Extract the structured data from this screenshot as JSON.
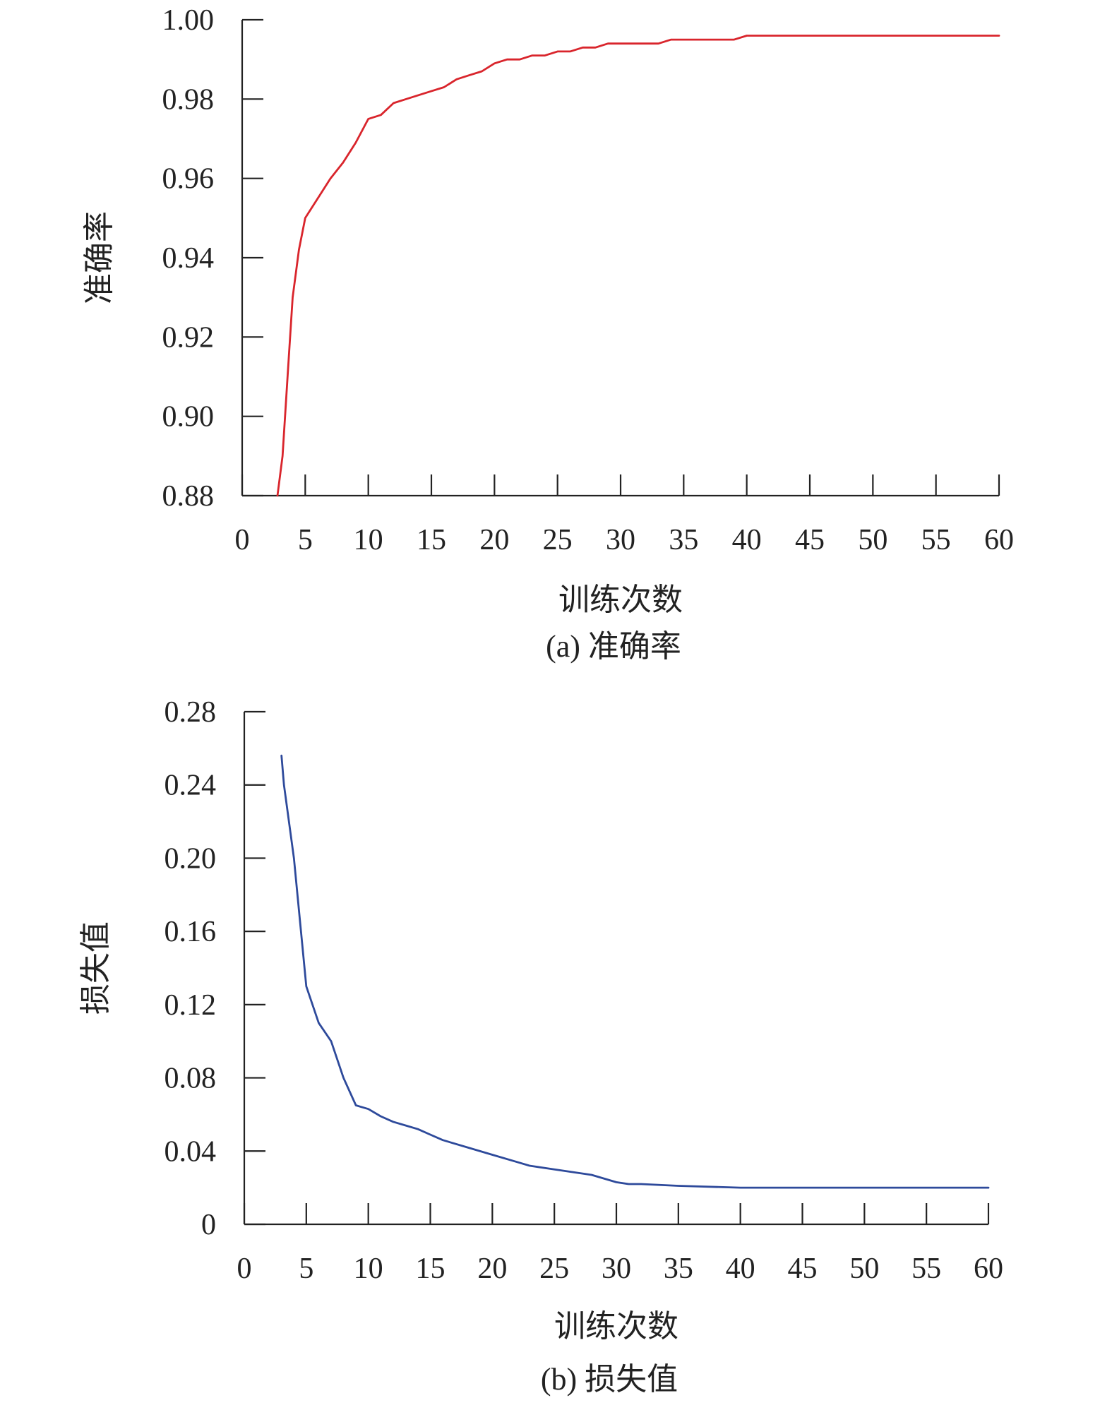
{
  "chart_data": [
    {
      "type": "line",
      "caption": "(a) 准确率",
      "xlabel": "训练次数",
      "ylabel": "准确率",
      "xlim": [
        0,
        60
      ],
      "ylim": [
        0.88,
        1.0
      ],
      "xticks": [
        0,
        5,
        10,
        15,
        20,
        25,
        30,
        35,
        40,
        45,
        50,
        55,
        60
      ],
      "yticks": [
        0.88,
        0.9,
        0.92,
        0.94,
        0.96,
        0.98,
        1.0
      ],
      "ytick_labels": [
        "0.88",
        "0.90",
        "0.92",
        "0.94",
        "0.96",
        "0.98",
        "1.00"
      ],
      "grid": false,
      "color": "#d9252c",
      "x": [
        2.8,
        3.2,
        3.6,
        4,
        4.5,
        5,
        6,
        7,
        8,
        9,
        10,
        11,
        12,
        13,
        14,
        15,
        16,
        17,
        18,
        19,
        20,
        21,
        22,
        23,
        24,
        25,
        26,
        27,
        28,
        29,
        30,
        31,
        32,
        33,
        34,
        35,
        36,
        37,
        38,
        39,
        40,
        45,
        50,
        55,
        60
      ],
      "y": [
        0.88,
        0.89,
        0.91,
        0.93,
        0.942,
        0.95,
        0.955,
        0.96,
        0.964,
        0.969,
        0.975,
        0.976,
        0.979,
        0.98,
        0.981,
        0.982,
        0.983,
        0.985,
        0.986,
        0.987,
        0.989,
        0.99,
        0.99,
        0.991,
        0.991,
        0.992,
        0.992,
        0.993,
        0.993,
        0.994,
        0.994,
        0.994,
        0.994,
        0.994,
        0.995,
        0.995,
        0.995,
        0.995,
        0.995,
        0.995,
        0.996,
        0.996,
        0.996,
        0.996,
        0.996
      ]
    },
    {
      "type": "line",
      "caption": "(b) 损失值",
      "xlabel": "训练次数",
      "ylabel": "损失值",
      "xlim": [
        0,
        60
      ],
      "ylim": [
        0,
        0.28
      ],
      "xticks": [
        0,
        5,
        10,
        15,
        20,
        25,
        30,
        35,
        40,
        45,
        50,
        55,
        60
      ],
      "yticks": [
        0,
        0.04,
        0.08,
        0.12,
        0.16,
        0.2,
        0.24,
        0.28
      ],
      "ytick_labels": [
        "0",
        "0.04",
        "0.08",
        "0.12",
        "0.16",
        "0.20",
        "0.24",
        "0.28"
      ],
      "grid": false,
      "color": "#2e4a9b",
      "x": [
        3,
        3.2,
        4,
        5,
        6,
        7,
        8,
        9,
        10,
        11,
        12,
        13,
        14,
        15,
        16,
        18,
        20,
        22,
        23,
        25,
        28,
        30,
        31,
        32,
        35,
        40,
        45,
        50,
        55,
        60
      ],
      "y": [
        0.256,
        0.24,
        0.2,
        0.13,
        0.11,
        0.1,
        0.08,
        0.065,
        0.063,
        0.059,
        0.056,
        0.054,
        0.052,
        0.049,
        0.046,
        0.042,
        0.038,
        0.034,
        0.032,
        0.03,
        0.027,
        0.023,
        0.022,
        0.022,
        0.021,
        0.02,
        0.02,
        0.02,
        0.02,
        0.02
      ]
    }
  ]
}
